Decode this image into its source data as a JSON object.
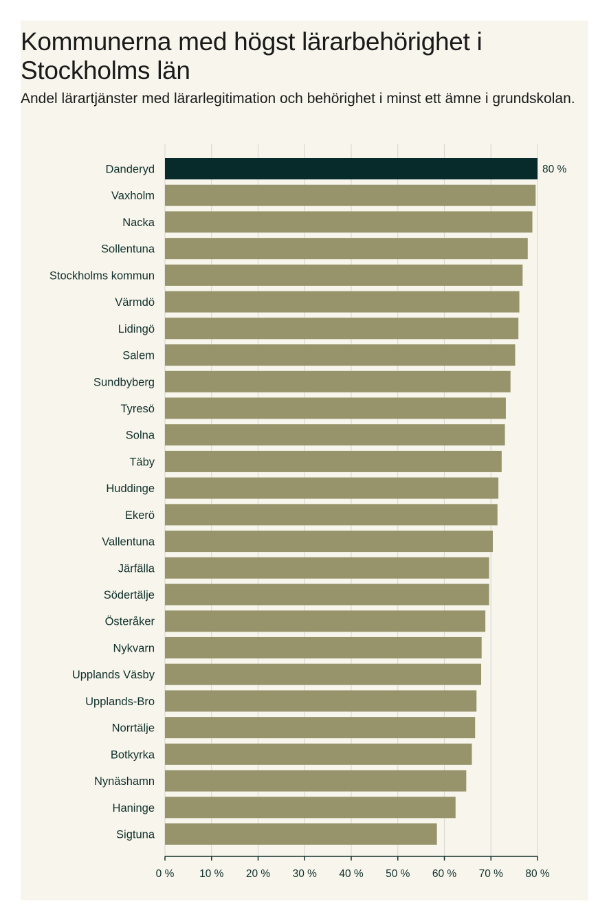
{
  "colors": {
    "highlight": "#062b2a",
    "bar": "#97946b",
    "grid": "#dad8d1",
    "text": "#10302c"
  },
  "chart_data": {
    "type": "bar",
    "orientation": "horizontal",
    "title": "Kommunerna med högst lärarbehörighet i Stockholms län",
    "subtitle": "Andel lärartjänster med lärarlegitimation och behörighet i minst ett ämne i grundskolan.",
    "categories": [
      "Danderyd",
      "Vaxholm",
      "Nacka",
      "Sollentuna",
      "Stockholms kommun",
      "Värmdö",
      "Lidingö",
      "Salem",
      "Sundbyberg",
      "Tyresö",
      "Solna",
      "Täby",
      "Huddinge",
      "Ekerö",
      "Vallentuna",
      "Järfälla",
      "Södertälje",
      "Österåker",
      "Nykvarn",
      "Upplands Väsby",
      "Upplands-Bro",
      "Norrtälje",
      "Botkyrka",
      "Nynäshamn",
      "Haninge",
      "Sigtuna"
    ],
    "values": [
      80,
      79.6,
      78.9,
      77.9,
      76.8,
      76.1,
      75.9,
      75.2,
      74.2,
      73.2,
      73.0,
      72.3,
      71.6,
      71.4,
      70.4,
      69.6,
      69.6,
      68.8,
      68.0,
      67.9,
      66.9,
      66.6,
      65.9,
      64.7,
      62.4,
      58.4
    ],
    "highlight_index": 0,
    "data_labels": [
      {
        "index": 0,
        "text": "80 %"
      }
    ],
    "xlim": [
      0,
      80
    ],
    "xticks": [
      0,
      10,
      20,
      30,
      40,
      50,
      60,
      70,
      80
    ],
    "xtick_labels": [
      "0 %",
      "10 %",
      "20 %",
      "30 %",
      "40 %",
      "50 %",
      "60 %",
      "70 %",
      "80 %"
    ],
    "xlabel": "",
    "ylabel": "",
    "grid": true,
    "legend": "none"
  }
}
